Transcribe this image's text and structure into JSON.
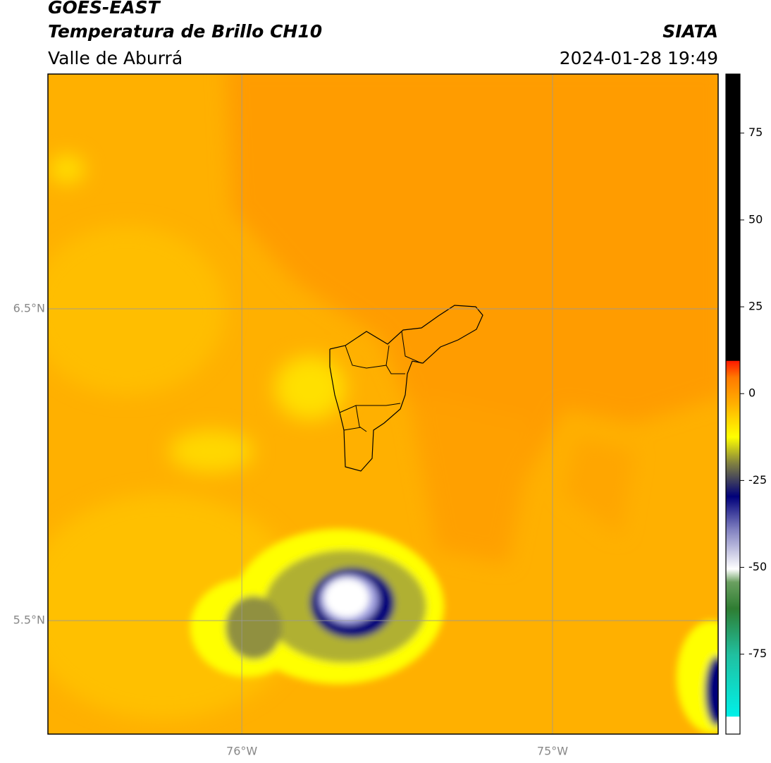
{
  "header": {
    "title": "GOES-EAST",
    "subtitle": "Temperatura de Brillo CH10",
    "region": "Valle de Aburrá",
    "source": "SIATA",
    "datetime": "2024-01-28 19:49"
  },
  "map": {
    "lat_range": [
      5.136,
      7.253
    ],
    "lon_range": [
      -76.624,
      -74.467
    ],
    "lat_labels": [
      {
        "value": 6.5,
        "label": "6.5°N"
      },
      {
        "value": 5.5,
        "label": "5.5°N"
      }
    ],
    "lon_labels": [
      {
        "value": -76,
        "label": "76°W"
      },
      {
        "value": -75,
        "label": "75°W"
      }
    ]
  },
  "colorbar": {
    "range": [
      -98,
      92
    ],
    "ticks": [
      75,
      50,
      25,
      0,
      -25,
      -50,
      -75
    ]
  }
}
